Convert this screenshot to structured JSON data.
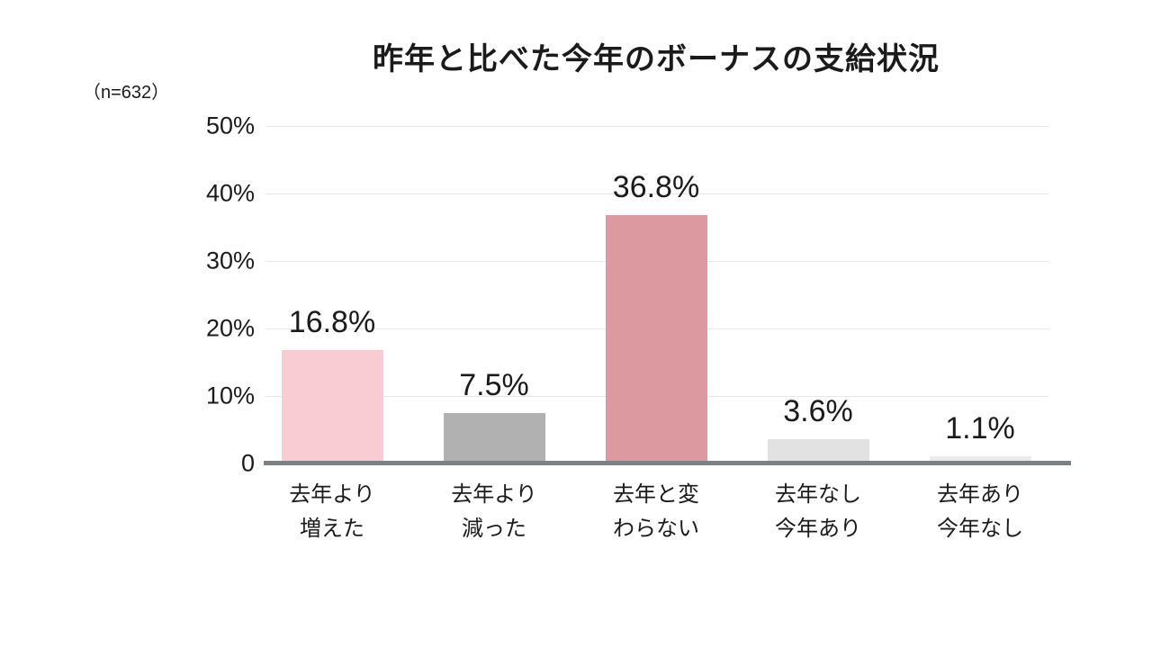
{
  "chart_data": {
    "type": "bar",
    "title": "昨年と比べた今年のボーナスの支給状況",
    "sample_size_label": "（n=632）",
    "categories": [
      "去年より\n増えた",
      "去年より\n減った",
      "去年と変\nわらない",
      "去年なし\n今年あり",
      "去年あり\n今年なし"
    ],
    "values": [
      16.8,
      7.5,
      36.8,
      3.6,
      1.1
    ],
    "value_labels": [
      "16.8%",
      "7.5%",
      "36.8%",
      "3.6%",
      "1.1%"
    ],
    "bar_colors": [
      "#f8ccd2",
      "#b1b1b1",
      "#dc99a0",
      "#e2e2e2",
      "#ebebeb"
    ],
    "xlabel": "",
    "ylabel": "",
    "ylim": [
      0,
      50
    ],
    "yticks": [
      {
        "label": "50%",
        "value": 50
      },
      {
        "label": "40%",
        "value": 40
      },
      {
        "label": "30%",
        "value": 30
      },
      {
        "label": "20%",
        "value": 20
      },
      {
        "label": "10%",
        "value": 10
      },
      {
        "label": "0",
        "value": 0
      }
    ],
    "grid": "horizontal",
    "legend": "none"
  },
  "colors": {
    "background": "#ffffff",
    "text": "#1b1b1b",
    "gridline": "#e8e8e8",
    "baseline": "#7d8084"
  }
}
